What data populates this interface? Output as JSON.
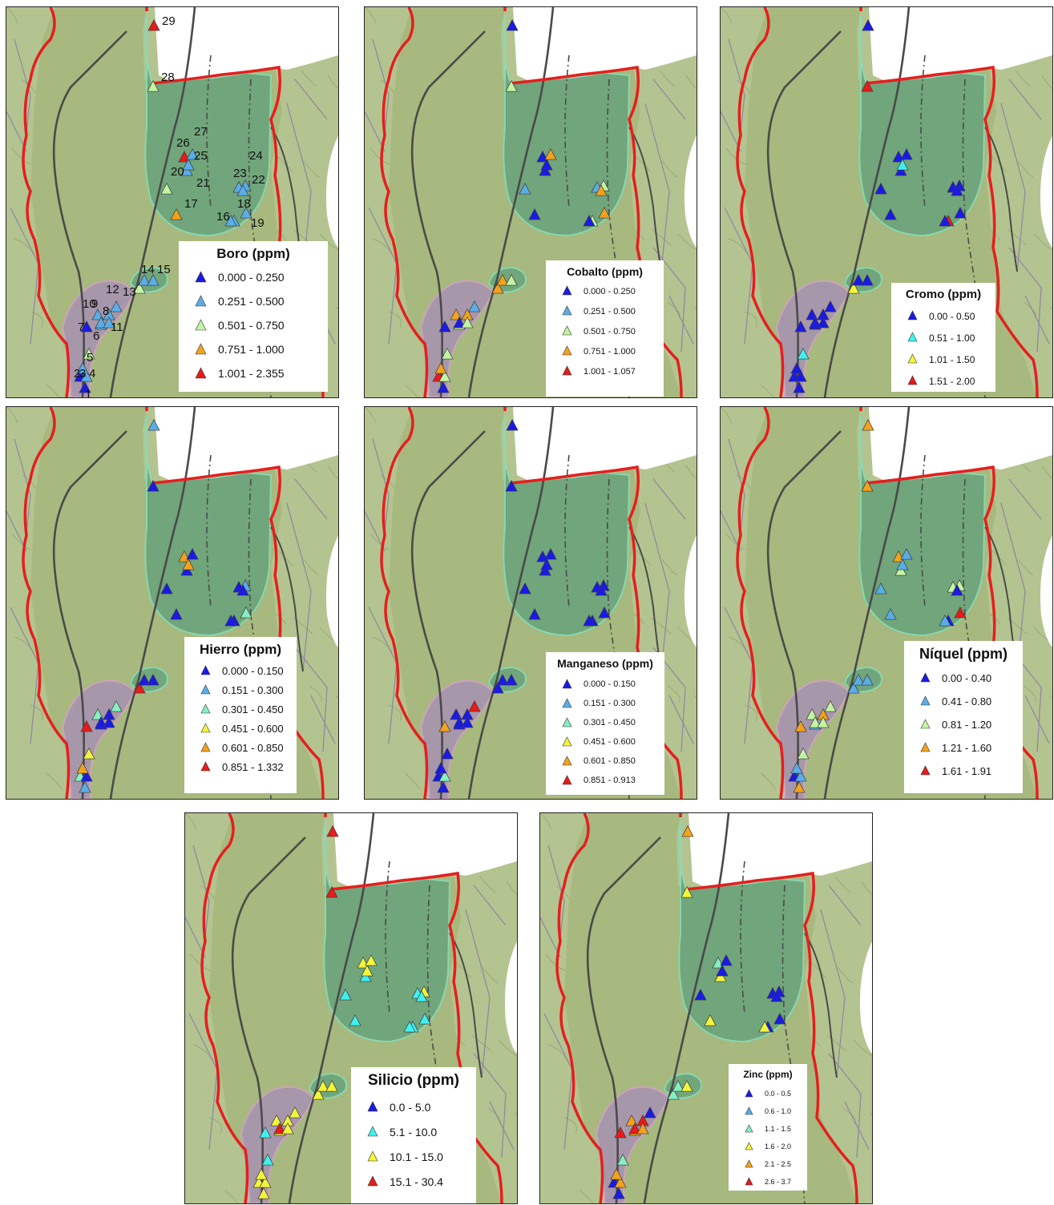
{
  "colors": {
    "blue": "#1a1ae6",
    "lightblue": "#5aaee8",
    "cyan": "#3ff0f0",
    "mint": "#86f0c2",
    "lightgreen": "#c2f5a2",
    "yellow": "#f3f53a",
    "orange": "#f4a21c",
    "red": "#e81a1a",
    "terrain": "#b4c490",
    "plain": "#a7b97e",
    "basin": "#5f9f7b",
    "south_zone": "#a88fb6",
    "boundary": "#e61e1e"
  },
  "maps": [
    {
      "element": "Boro",
      "legend": {
        "title": "Boro (ppm)",
        "items": [
          {
            "range": "0.000 - 0.250",
            "color": "blue"
          },
          {
            "range": "0.251 - 0.500",
            "color": "lightblue"
          },
          {
            "range": "0.501 - 0.750",
            "color": "lightgreen"
          },
          {
            "range": "0.751 - 1.000",
            "color": "orange"
          },
          {
            "range": "1.001 - 2.355",
            "color": "red"
          }
        ]
      },
      "samples": [
        "blue",
        "blue",
        "lightblue",
        "lightblue",
        "lightgreen",
        "lightblue",
        "blue",
        "lightblue",
        "lightblue",
        "lightblue",
        "lightblue",
        "lightblue",
        "lightgreen",
        "lightblue",
        "lightblue",
        "lightblue",
        "orange",
        "lightblue",
        "lightblue",
        "lightblue",
        "lightgreen",
        "lightblue",
        "lightblue",
        "lightblue",
        "red",
        "lightblue",
        "lightblue",
        "lightgreen",
        "red"
      ],
      "sample_labels": [
        "1",
        "2",
        "3",
        "4",
        "5",
        "6",
        "7",
        "8",
        "9",
        "10",
        "11",
        "12",
        "13",
        "14",
        "15",
        "16",
        "17",
        "18",
        "19",
        "20",
        "21",
        "22",
        "23",
        "24",
        "25",
        "26",
        "27",
        "28",
        "29"
      ]
    },
    {
      "element": "Cobalto",
      "legend": {
        "title": "Cobalto (ppm)",
        "items": [
          {
            "range": "0.000 - 0.250",
            "color": "blue"
          },
          {
            "range": "0.251 - 0.500",
            "color": "lightblue"
          },
          {
            "range": "0.501 - 0.750",
            "color": "lightgreen"
          },
          {
            "range": "0.751 - 1.000",
            "color": "orange"
          },
          {
            "range": "1.001 - 1.057",
            "color": "red"
          }
        ]
      },
      "samples": [
        "blue",
        "red",
        "lightgreen",
        "orange",
        "lightgreen",
        "lightgreen",
        "blue",
        "orange",
        "orange",
        "blue",
        "lightgreen",
        "lightblue",
        "orange",
        "orange",
        "lightgreen",
        "lightgreen",
        "blue",
        "orange",
        "blue",
        "blue",
        "lightblue",
        "lightgreen",
        "lightblue",
        "orange",
        "blue",
        "blue",
        "orange",
        "lightgreen",
        "blue"
      ]
    },
    {
      "element": "Cromo",
      "legend": {
        "title": "Cromo (ppm)",
        "items": [
          {
            "range": "0.00 - 0.50",
            "color": "blue"
          },
          {
            "range": "0.51 - 1.00",
            "color": "cyan"
          },
          {
            "range": "1.01 - 1.50",
            "color": "yellow"
          },
          {
            "range": "1.51 - 2.00",
            "color": "red"
          }
        ]
      },
      "samples": [
        "blue",
        "blue",
        "blue",
        "blue",
        "cyan",
        "blue",
        "blue",
        "blue",
        "blue",
        "blue",
        "blue",
        "blue",
        "yellow",
        "blue",
        "blue",
        "red",
        "blue",
        "blue",
        "blue",
        "blue",
        "blue",
        "blue",
        "blue",
        "blue",
        "blue",
        "cyan",
        "blue",
        "red",
        "blue"
      ]
    },
    {
      "element": "Hierro",
      "legend": {
        "title": "Hierro (ppm)",
        "items": [
          {
            "range": "0.000 - 0.150",
            "color": "blue"
          },
          {
            "range": "0.151 - 0.300",
            "color": "lightblue"
          },
          {
            "range": "0.301 - 0.450",
            "color": "mint"
          },
          {
            "range": "0.451 - 0.600",
            "color": "yellow"
          },
          {
            "range": "0.601 - 0.850",
            "color": "orange"
          },
          {
            "range": "0.851 - 1.332",
            "color": "red"
          }
        ]
      },
      "samples": [
        "lightblue",
        "mint",
        "blue",
        "orange",
        "yellow",
        "blue",
        "red",
        "blue",
        "mint",
        "blue",
        "blue",
        "mint",
        "red",
        "blue",
        "blue",
        "blue",
        "blue",
        "mint",
        "blue",
        "blue",
        "blue",
        "lightblue",
        "blue",
        "blue",
        "orange",
        "orange",
        "blue",
        "blue",
        "lightblue"
      ]
    },
    {
      "element": "Manganeso",
      "legend": {
        "title": "Manganeso (ppm)",
        "items": [
          {
            "range": "0.000 - 0.150",
            "color": "blue"
          },
          {
            "range": "0.151 - 0.300",
            "color": "lightblue"
          },
          {
            "range": "0.301 - 0.450",
            "color": "mint"
          },
          {
            "range": "0.451 - 0.600",
            "color": "yellow"
          },
          {
            "range": "0.601 - 0.850",
            "color": "orange"
          },
          {
            "range": "0.851 - 0.913",
            "color": "red"
          }
        ]
      },
      "samples": [
        "blue",
        "blue",
        "mint",
        "blue",
        "blue",
        "blue",
        "orange",
        "blue",
        "blue",
        "blue",
        "blue",
        "red",
        "blue",
        "blue",
        "blue",
        "blue",
        "blue",
        "blue",
        "blue",
        "blue",
        "blue",
        "blue",
        "blue",
        "blue",
        "blue",
        "blue",
        "blue",
        "blue",
        "blue"
      ]
    },
    {
      "element": "Níquel",
      "legend": {
        "title": "Níquel (ppm)",
        "items": [
          {
            "range": "0.00 - 0.40",
            "color": "blue"
          },
          {
            "range": "0.41 - 0.80",
            "color": "lightblue"
          },
          {
            "range": "0.81 - 1.20",
            "color": "lightgreen"
          },
          {
            "range": "1.21 - 1.60",
            "color": "orange"
          },
          {
            "range": "1.61 - 1.91",
            "color": "red"
          }
        ]
      },
      "samples": [
        "orange",
        "blue",
        "lightblue",
        "lightblue",
        "lightgreen",
        "lightblue",
        "orange",
        "orange",
        "lightgreen",
        "lightgreen",
        "lightgreen",
        "lightgreen",
        "lightblue",
        "lightblue",
        "lightblue",
        "blue",
        "lightblue",
        "red",
        "lightblue",
        "lightgreen",
        "lightblue",
        "lightgreen",
        "lightgreen",
        "blue",
        "orange",
        "lightblue",
        "lightblue",
        "orange",
        "orange"
      ]
    },
    {
      "element": "Silicio",
      "legend": {
        "title": "Silicio (ppm)",
        "items": [
          {
            "range": "0.0 - 5.0",
            "color": "blue"
          },
          {
            "range": "5.1 - 10.0",
            "color": "cyan"
          },
          {
            "range": "10.1 - 15.0",
            "color": "yellow"
          },
          {
            "range": "15.1 - 30.4",
            "color": "red"
          }
        ]
      },
      "samples": [
        "yellow",
        "yellow",
        "yellow",
        "yellow",
        "cyan",
        "yellow",
        "cyan",
        "yellow",
        "yellow",
        "red",
        "yellow",
        "yellow",
        "yellow",
        "yellow",
        "yellow",
        "cyan",
        "cyan",
        "cyan",
        "cyan",
        "cyan",
        "cyan",
        "yellow",
        "cyan",
        "cyan",
        "yellow",
        "yellow",
        "yellow",
        "red",
        "red"
      ]
    },
    {
      "element": "Zinc",
      "legend": {
        "title": "Zinc (ppm)",
        "items": [
          {
            "range": "0.0 - 0.5",
            "color": "blue"
          },
          {
            "range": "0.6 - 1.0",
            "color": "lightblue"
          },
          {
            "range": "1.1 - 1.5",
            "color": "mint"
          },
          {
            "range": "1.6 - 2.0",
            "color": "yellow"
          },
          {
            "range": "2.1 - 2.5",
            "color": "orange"
          },
          {
            "range": "2.6 - 3.7",
            "color": "red"
          }
        ]
      },
      "samples": [
        "blue",
        "blue",
        "orange",
        "orange",
        "mint",
        "orange",
        "red",
        "red",
        "orange",
        "red",
        "orange",
        "blue",
        "mint",
        "mint",
        "yellow",
        "blue",
        "yellow",
        "blue",
        "yellow",
        "yellow",
        "blue",
        "blue",
        "blue",
        "blue",
        "mint",
        "blue",
        "blue",
        "yellow",
        "orange"
      ]
    }
  ]
}
